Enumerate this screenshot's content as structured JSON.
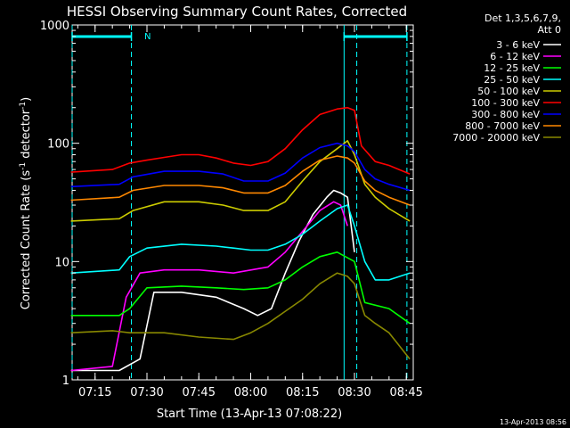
{
  "chart_data": {
    "type": "line",
    "title": "HESSI Observing Summary Count Rates, Corrected",
    "xlabel": "Start Time (13-Apr-13 07:08:22)",
    "ylabel": "Corrected Count Rate (s",
    "ylabel_sup1": "-1",
    "ylabel_mid": " detector",
    "ylabel_sup2": "-1",
    "ylabel_end": ")",
    "yscale": "log",
    "xlim": [
      "07:08:22",
      "08:47:00"
    ],
    "ylim": [
      1,
      1000
    ],
    "x_ticks": [
      "07:15",
      "07:30",
      "07:45",
      "08:00",
      "08:15",
      "08:30",
      "08:45"
    ],
    "y_ticks": [
      "1",
      "10",
      "100",
      "1000"
    ],
    "legend_header": [
      "Det 1,3,5,6,7,9,",
      "Att 0"
    ],
    "legend_position": "right",
    "timestamp": "13-Apr-2013 08:56",
    "flag_label": "N",
    "series": [
      {
        "name": "3 - 6 keV",
        "color": "#ffffff",
        "x": [
          "07:08",
          "07:22",
          "07:28",
          "07:32",
          "07:40",
          "07:50",
          "07:58",
          "08:02",
          "08:06",
          "08:10",
          "08:14",
          "08:18",
          "08:22",
          "08:24",
          "08:26",
          "08:28",
          "08:30"
        ],
        "values": [
          1.2,
          1.2,
          1.5,
          5.5,
          5.5,
          5.0,
          4.0,
          3.5,
          4.0,
          8.0,
          15,
          25,
          35,
          40,
          38,
          35,
          12
        ]
      },
      {
        "name": "6 - 12 keV",
        "color": "#ff00ff",
        "x": [
          "07:08",
          "07:20",
          "07:24",
          "07:28",
          "07:35",
          "07:45",
          "07:55",
          "08:05",
          "08:10",
          "08:15",
          "08:20",
          "08:24",
          "08:26",
          "08:28"
        ],
        "values": [
          1.2,
          1.3,
          5,
          8,
          8.5,
          8.5,
          8,
          9,
          12,
          18,
          27,
          32,
          30,
          20
        ]
      },
      {
        "name": "12 - 25 keV",
        "color": "#00ff00",
        "x": [
          "07:08",
          "07:22",
          "07:25",
          "07:30",
          "07:40",
          "07:50",
          "07:58",
          "08:05",
          "08:10",
          "08:15",
          "08:20",
          "08:25",
          "08:30",
          "08:33",
          "08:40",
          "08:46"
        ],
        "values": [
          3.5,
          3.5,
          4,
          6,
          6.2,
          6,
          5.8,
          6,
          7,
          9,
          11,
          12,
          10,
          4.5,
          4,
          3
        ]
      },
      {
        "name": "25 - 50 keV",
        "color": "#00ffff",
        "x": [
          "07:08",
          "07:22",
          "07:25",
          "07:30",
          "07:40",
          "07:50",
          "07:55",
          "08:00",
          "08:05",
          "08:10",
          "08:15",
          "08:20",
          "08:25",
          "08:28",
          "08:30",
          "08:33",
          "08:36",
          "08:40",
          "08:46"
        ],
        "values": [
          8,
          8.5,
          11,
          13,
          14,
          13.5,
          13,
          12.5,
          12.5,
          14,
          17,
          22,
          28,
          30,
          20,
          10,
          7,
          7,
          8
        ]
      },
      {
        "name": "50 - 100 keV",
        "color": "#cccc00",
        "x": [
          "07:08",
          "07:22",
          "07:26",
          "07:35",
          "07:45",
          "07:52",
          "07:58",
          "08:05",
          "08:10",
          "08:15",
          "08:20",
          "08:25",
          "08:28",
          "08:30",
          "08:33",
          "08:36",
          "08:40",
          "08:46"
        ],
        "values": [
          22,
          23,
          27,
          32,
          32,
          30,
          27,
          27,
          32,
          48,
          70,
          90,
          105,
          80,
          45,
          35,
          28,
          22
        ]
      },
      {
        "name": "100 - 300 keV",
        "color": "#ff0000",
        "x": [
          "07:08",
          "07:20",
          "07:25",
          "07:30",
          "07:35",
          "07:40",
          "07:45",
          "07:50",
          "07:55",
          "08:00",
          "08:05",
          "08:10",
          "08:15",
          "08:20",
          "08:25",
          "08:28",
          "08:30",
          "08:32",
          "08:36",
          "08:40",
          "08:46"
        ],
        "values": [
          57,
          60,
          68,
          72,
          76,
          80,
          80,
          75,
          68,
          65,
          70,
          90,
          130,
          175,
          195,
          200,
          190,
          95,
          70,
          65,
          55
        ]
      },
      {
        "name": "300 - 800 keV",
        "color": "#0000ff",
        "x": [
          "07:08",
          "07:22",
          "07:26",
          "07:35",
          "07:45",
          "07:52",
          "07:58",
          "08:05",
          "08:10",
          "08:15",
          "08:20",
          "08:25",
          "08:28",
          "08:30",
          "08:33",
          "08:36",
          "08:40",
          "08:46"
        ],
        "values": [
          43,
          45,
          52,
          58,
          58,
          55,
          48,
          48,
          56,
          75,
          92,
          100,
          95,
          85,
          60,
          50,
          45,
          40
        ]
      },
      {
        "name": "800 - 7000 keV",
        "color": "#ff8800",
        "x": [
          "07:08",
          "07:22",
          "07:26",
          "07:35",
          "07:45",
          "07:52",
          "07:58",
          "08:05",
          "08:10",
          "08:15",
          "08:20",
          "08:25",
          "08:28",
          "08:30",
          "08:33",
          "08:36",
          "08:40",
          "08:46"
        ],
        "values": [
          33,
          35,
          40,
          44,
          44,
          42,
          38,
          38,
          44,
          58,
          72,
          78,
          75,
          68,
          48,
          40,
          35,
          30
        ]
      },
      {
        "name": "7000 - 20000 keV",
        "color": "#888800",
        "x": [
          "07:08",
          "07:20",
          "07:25",
          "07:35",
          "07:45",
          "07:55",
          "08:00",
          "08:05",
          "08:10",
          "08:15",
          "08:20",
          "08:25",
          "08:28",
          "08:30",
          "08:33",
          "08:36",
          "08:40",
          "08:46"
        ],
        "values": [
          2.5,
          2.6,
          2.5,
          2.5,
          2.3,
          2.2,
          2.5,
          3,
          3.8,
          4.8,
          6.5,
          8,
          7.5,
          6.5,
          3.5,
          3,
          2.5,
          1.5
        ]
      }
    ],
    "vertical_lines": [
      {
        "time": "07:08:22",
        "style": "dashed",
        "color": "#00ffff"
      },
      {
        "time": "07:25:30",
        "style": "dashed",
        "color": "#00ffff"
      },
      {
        "time": "08:27:00",
        "style": "solid",
        "color": "#00ffff"
      },
      {
        "time": "08:30:40",
        "style": "dashed",
        "color": "#00ffff"
      },
      {
        "time": "08:45:10",
        "style": "dashed",
        "color": "#00ffff"
      }
    ],
    "flag_bars": [
      {
        "start": "07:08:22",
        "end": "07:25:30"
      },
      {
        "start": "08:27:00",
        "end": "08:45:10"
      }
    ]
  }
}
